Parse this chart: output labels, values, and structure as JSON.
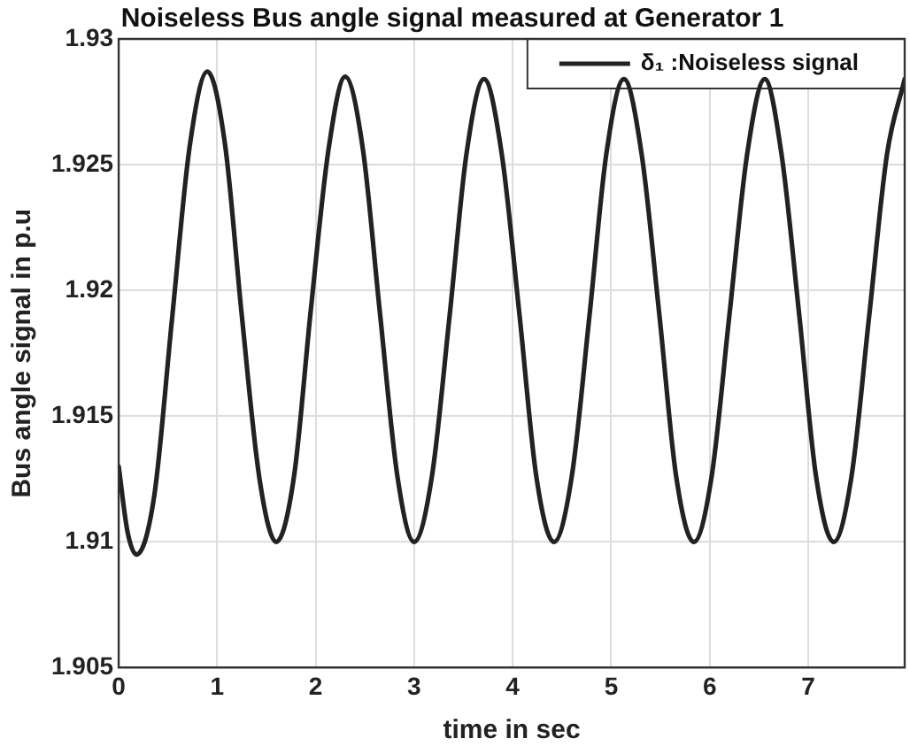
{
  "chart_data": {
    "type": "line",
    "title": "Noiseless Bus angle signal measured at Generator 1",
    "xlabel": "time in sec",
    "ylabel": "Bus angle signal in p.u",
    "xlim": [
      0,
      7.98
    ],
    "xticks": [
      0,
      1,
      2,
      3,
      4,
      5,
      6,
      7
    ],
    "ylim": [
      1.905,
      1.93
    ],
    "yticks": [
      1.905,
      1.91,
      1.915,
      1.92,
      1.925,
      1.93
    ],
    "grid": true,
    "legend": "top right",
    "marker": "none",
    "line_style": "solid",
    "series": [
      {
        "name": "δ₁ :Noiseless signal",
        "color": "#222222",
        "x": [
          0,
          0.09,
          0.18,
          0.36,
          0.54,
          0.72,
          0.9,
          1.08,
          1.25,
          1.43,
          1.6,
          1.78,
          1.95,
          2.13,
          2.3,
          2.48,
          2.65,
          2.83,
          3.0,
          3.18,
          3.36,
          3.53,
          3.71,
          3.89,
          4.07,
          4.24,
          4.42,
          4.6,
          4.78,
          4.95,
          5.13,
          5.31,
          5.49,
          5.66,
          5.84,
          6.02,
          6.2,
          6.38,
          6.56,
          6.73,
          6.91,
          7.08,
          7.26,
          7.44,
          7.62,
          7.8,
          7.98
        ],
        "values": [
          1.913,
          1.9104,
          1.9095,
          1.9118,
          1.9188,
          1.9257,
          1.9287,
          1.9258,
          1.919,
          1.9125,
          1.91,
          1.9126,
          1.9192,
          1.9256,
          1.9285,
          1.9256,
          1.9192,
          1.9126,
          1.91,
          1.9126,
          1.919,
          1.9254,
          1.9284,
          1.9254,
          1.919,
          1.9126,
          1.91,
          1.9126,
          1.919,
          1.9254,
          1.9284,
          1.9254,
          1.919,
          1.9126,
          1.91,
          1.9126,
          1.919,
          1.9254,
          1.9284,
          1.9254,
          1.919,
          1.9126,
          1.91,
          1.9126,
          1.919,
          1.9254,
          1.9284
        ]
      }
    ]
  }
}
